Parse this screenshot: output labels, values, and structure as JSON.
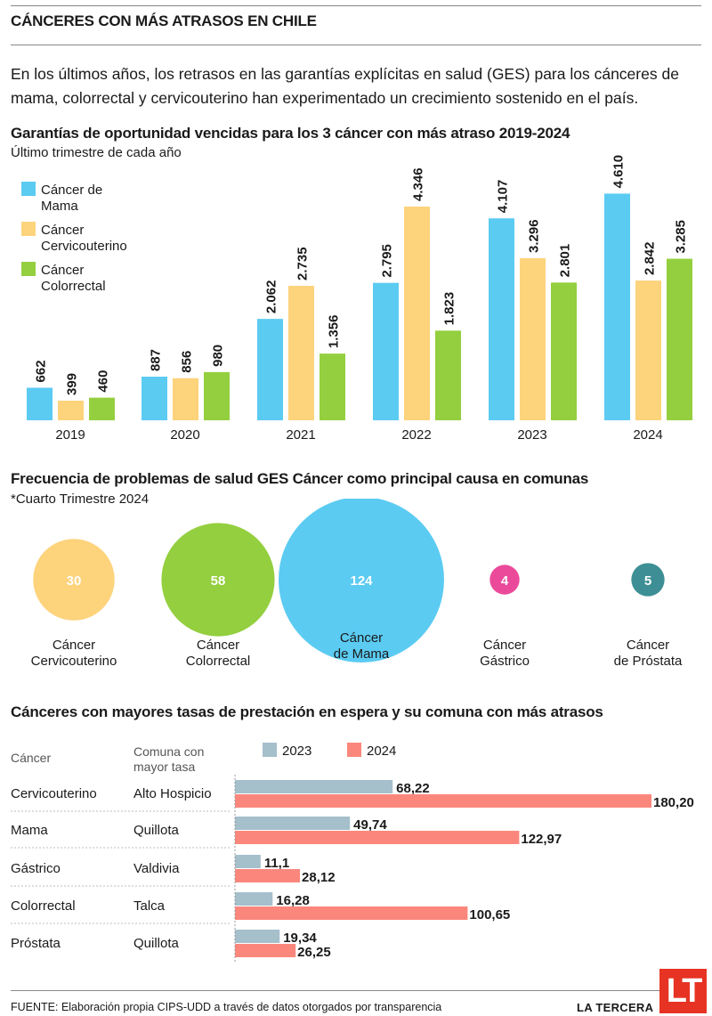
{
  "header": {
    "title": "CÁNCERES CON MÁS ATRASOS EN CHILE",
    "intro": "En los últimos años, los retrasos en las garantías explícitas en salud (GES) para los cánceres de mama, colorrectal y cervicouterino han experimentado un crecimiento sostenido en el país."
  },
  "section1": {
    "title": "Garantías de oportunidad vencidas para los 3 cáncer con más atraso 2019-2024",
    "subtitle": "Último trimestre de cada año"
  },
  "section2": {
    "title": "Frecuencia de problemas de salud GES Cáncer como principal causa en comunas",
    "subtitle": "*Cuarto Trimestre 2024"
  },
  "section3": {
    "title": "Cánceres con mayores tasas de prestación en espera y su comuna con más atrasos",
    "col_cancer": "Cáncer",
    "col_comuna_1": "Comuna con",
    "col_comuna_2": "mayor tasa"
  },
  "footer": {
    "source": "FUENTE: Elaboración propia CIPS-UDD a través de datos otorgados por transparencia",
    "brand": "LA TERCERA",
    "logo": "LT"
  },
  "colors": {
    "mama": "#5bcbf2",
    "cervicouterino": "#fdd37c",
    "colorrectal": "#94cf3f",
    "gastrico": "#eb4a9b",
    "prostata": "#3d8f95",
    "y2023": "#a5bfcb",
    "y2024": "#fb877c"
  },
  "chart_data": [
    {
      "type": "bar",
      "categories": [
        "2019",
        "2020",
        "2021",
        "2022",
        "2023",
        "2024"
      ],
      "series": [
        {
          "name": "Cáncer de Mama",
          "legend_lines": [
            "Cáncer de",
            "Mama"
          ],
          "color_key": "mama",
          "values": [
            662,
            887,
            2062,
            2795,
            4107,
            4610
          ],
          "labels": [
            "662",
            "887",
            "2.062",
            "2.795",
            "4.107",
            "4.610"
          ]
        },
        {
          "name": "Cáncer Cervicouterino",
          "legend_lines": [
            "Cáncer",
            "Cervicouterino"
          ],
          "color_key": "cervicouterino",
          "values": [
            399,
            856,
            2735,
            4346,
            3296,
            2842
          ],
          "labels": [
            "399",
            "856",
            "2.735",
            "4.346",
            "3.296",
            "2.842"
          ]
        },
        {
          "name": "Cáncer Colorrectal",
          "legend_lines": [
            "Cáncer",
            "Colorrectal"
          ],
          "color_key": "colorrectal",
          "values": [
            460,
            980,
            1356,
            1823,
            2801,
            3285
          ],
          "labels": [
            "460",
            "980",
            "1.356",
            "1.823",
            "2.801",
            "3.285"
          ]
        }
      ],
      "ylim": [
        0,
        4800
      ],
      "grid": false,
      "legend": "top-left"
    },
    {
      "type": "bubble",
      "items": [
        {
          "name": "Cáncer Cervicouterino",
          "lines": [
            "Cáncer",
            "Cervicouterino"
          ],
          "value": 30,
          "color_key": "cervicouterino"
        },
        {
          "name": "Cáncer Colorrectal",
          "lines": [
            "Cáncer",
            "Colorrectal"
          ],
          "value": 58,
          "color_key": "colorrectal"
        },
        {
          "name": "Cáncer de Mama",
          "lines": [
            "Cáncer",
            "de Mama"
          ],
          "value": 124,
          "color_key": "mama"
        },
        {
          "name": "Cáncer Gástrico",
          "lines": [
            "Cáncer",
            "Gástrico"
          ],
          "value": 4,
          "color_key": "gastrico"
        },
        {
          "name": "Cáncer de Próstata",
          "lines": [
            "Cáncer",
            "de Próstata"
          ],
          "value": 5,
          "color_key": "prostata"
        }
      ]
    },
    {
      "type": "bar",
      "orientation": "horizontal",
      "series": [
        {
          "name": "2023",
          "color_key": "y2023"
        },
        {
          "name": "2024",
          "color_key": "y2024"
        }
      ],
      "rows": [
        {
          "cancer": "Cervicouterino",
          "comuna": "Alto Hospicio",
          "v2023": 68.22,
          "v2024": 180.2,
          "l2023": "68,22",
          "l2024": "180,20"
        },
        {
          "cancer": "Mama",
          "comuna": "Quillota",
          "v2023": 49.74,
          "v2024": 122.97,
          "l2023": "49,74",
          "l2024": "122,97"
        },
        {
          "cancer": "Gástrico",
          "comuna": "Valdivia",
          "v2023": 11.1,
          "v2024": 28.12,
          "l2023": "11,1",
          "l2024": "28,12"
        },
        {
          "cancer": "Colorrectal",
          "comuna": "Talca",
          "v2023": 16.28,
          "v2024": 100.65,
          "l2023": "16,28",
          "l2024": "100,65"
        },
        {
          "cancer": "Próstata",
          "comuna": "Quillota",
          "v2023": 19.34,
          "v2024": 26.25,
          "l2023": "19,34",
          "l2024": "26,25"
        }
      ],
      "xlim": [
        0,
        180.2
      ],
      "legend": "top"
    }
  ]
}
